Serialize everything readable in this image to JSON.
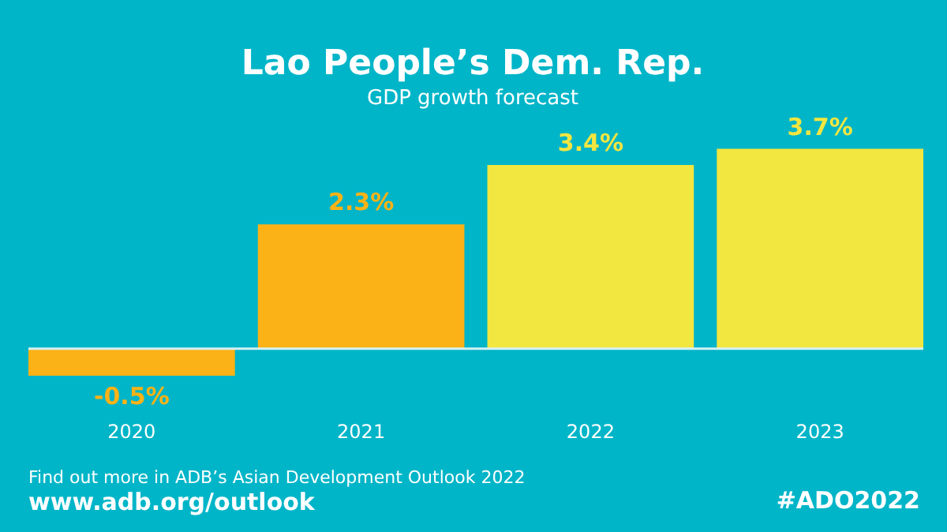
{
  "chart_data": {
    "type": "bar",
    "title": "Lao People’s Dem. Rep.",
    "subtitle": "GDP growth forecast",
    "categories": [
      "2020",
      "2021",
      "2022",
      "2023"
    ],
    "values": [
      -0.5,
      2.3,
      3.4,
      3.7
    ],
    "value_labels": [
      "-0.5%",
      "2.3%",
      "3.4%",
      "3.7%"
    ],
    "colors": [
      "#fbb216",
      "#fbb216",
      "#f2e640",
      "#f2e640"
    ],
    "tick_labels": "x",
    "ref_lines": [
      {
        "axis": "y",
        "value": 0,
        "color": "#d6f1f4"
      }
    ],
    "annotations": [
      "Find out more in ADB’s Asian Development Outlook 2022",
      "www.adb.org/outlook",
      "#ADO2022"
    ]
  }
}
